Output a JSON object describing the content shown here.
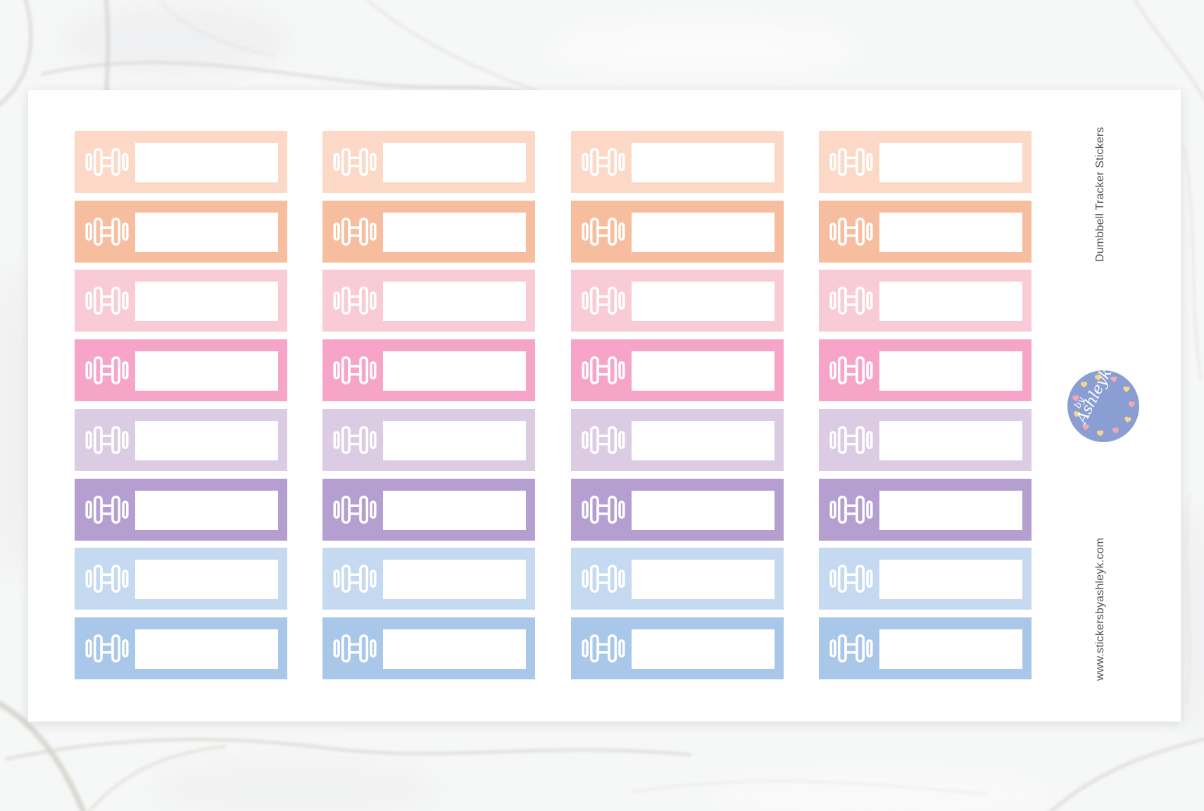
{
  "product": {
    "side_title": "Dumbbell Tracker Stickers",
    "side_website": "www.stickersbyashleyk.com",
    "side_text_color": "#515151",
    "sheet_background": "#ffffff",
    "marble_base_color": "#f6f7f7",
    "grid": {
      "columns": 4,
      "rows": 8,
      "stickers_total": 32,
      "icon": "dumbbell-icon",
      "icon_color": "#ffffff",
      "label_background": "#ffffff",
      "label_text": ""
    },
    "row_colors": [
      {
        "row": 1,
        "name": "light-peach",
        "hex": "#fbd9c6"
      },
      {
        "row": 2,
        "name": "peach",
        "hex": "#f7bd9f"
      },
      {
        "row": 3,
        "name": "light-pink",
        "hex": "#f9cbd6"
      },
      {
        "row": 4,
        "name": "pink",
        "hex": "#f6a5c9"
      },
      {
        "row": 5,
        "name": "light-lavender",
        "hex": "#dbcce4"
      },
      {
        "row": 6,
        "name": "lavender",
        "hex": "#b59fd0"
      },
      {
        "row": 7,
        "name": "light-blue",
        "hex": "#c5d9f1"
      },
      {
        "row": 8,
        "name": "blue",
        "hex": "#a9c7e9"
      }
    ],
    "logo": {
      "prefix": "by",
      "name": "Ashleyk",
      "circle_color": "#8b9ed3",
      "text_color": "#ffffff",
      "heart_colors": [
        "#f6d58d",
        "#f2a9b6"
      ]
    }
  }
}
